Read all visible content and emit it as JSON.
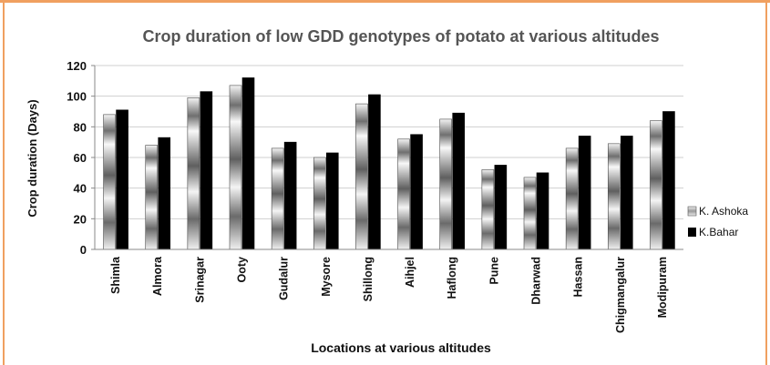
{
  "colors": {
    "frame": "#f0a060",
    "ashoka": "#bdbdbd",
    "bahar": "#000000",
    "grid": "#cfcfcf"
  },
  "chart_data": {
    "type": "bar",
    "title": "Crop duration of low GDD genotypes of potato at various altitudes",
    "xlabel": "Locations at various altitudes",
    "ylabel": "Crop duration (Days)",
    "ylim": [
      0,
      120
    ],
    "yticks": [
      "0",
      "20",
      "40",
      "60",
      "80",
      "100",
      "120"
    ],
    "grid": true,
    "legend_position": "right",
    "categories": [
      "Shimla",
      "Almora",
      "Srinagar",
      "Ooty",
      "Gudalur",
      "Mysore",
      "Shillong",
      "Aihjel",
      "Haflong",
      "Pune",
      "Dharwad",
      "Hassan",
      "Chigmangalur",
      "Modipuram"
    ],
    "series": [
      {
        "name": "K. Ashoka",
        "values": [
          88,
          68,
          99,
          107,
          66,
          60,
          95,
          72,
          85,
          52,
          47,
          66,
          69,
          84
        ]
      },
      {
        "name": "K.Bahar",
        "values": [
          91,
          73,
          103,
          112,
          70,
          63,
          101,
          75,
          89,
          55,
          50,
          74,
          74,
          90
        ]
      }
    ]
  }
}
